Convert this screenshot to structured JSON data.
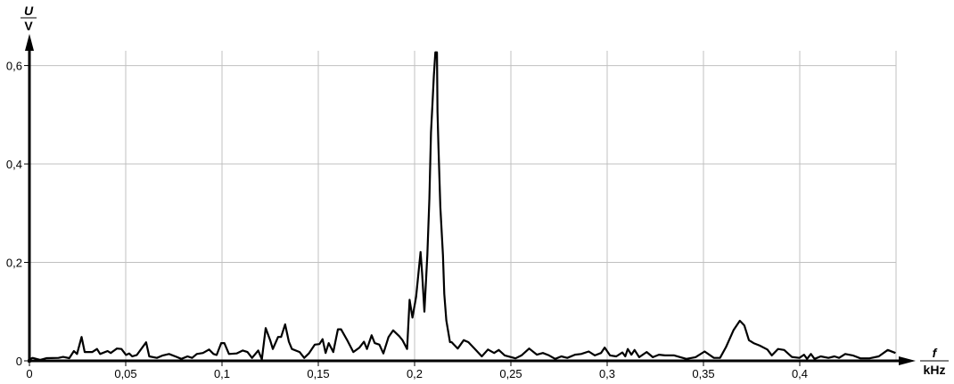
{
  "chart_data": {
    "type": "line",
    "title": "",
    "ylabel": {
      "symbol": "U",
      "unit": "V"
    },
    "xlabel": {
      "symbol": "f",
      "unit": "kHz"
    },
    "xlim": [
      0,
      0.45
    ],
    "ylim": [
      0,
      0.63
    ],
    "grid": true,
    "x_ticks": [
      0,
      0.05,
      0.1,
      0.15,
      0.2,
      0.25,
      0.3,
      0.35,
      0.4
    ],
    "x_tick_labels": [
      "0",
      "0,05",
      "0,1",
      "0,15",
      "0,2",
      "0,25",
      "0,3",
      "0,35",
      "0,4"
    ],
    "y_ticks": [
      0,
      0.2,
      0.4,
      0.6
    ],
    "y_tick_labels": [
      "0",
      "0,2",
      "0,4",
      "0,6"
    ],
    "colors": {
      "line": "#000000",
      "grid": "#c0c0c0",
      "axis": "#000000"
    },
    "series": [
      {
        "points": [
          [
            0,
            0.003
          ],
          [
            0.0016,
            0.006
          ],
          [
            0.0056,
            0.002
          ],
          [
            0.0088,
            0.0055
          ],
          [
            0.0151,
            0.006
          ],
          [
            0.0175,
            0.008
          ],
          [
            0.0207,
            0.0055
          ],
          [
            0.0231,
            0.02
          ],
          [
            0.0247,
            0.014
          ],
          [
            0.0271,
            0.0485
          ],
          [
            0.0287,
            0.018
          ],
          [
            0.0327,
            0.018
          ],
          [
            0.0351,
            0.024
          ],
          [
            0.0367,
            0.014
          ],
          [
            0.0406,
            0.02
          ],
          [
            0.0422,
            0.016
          ],
          [
            0.0454,
            0.025
          ],
          [
            0.0478,
            0.024
          ],
          [
            0.0502,
            0.012
          ],
          [
            0.0518,
            0.015
          ],
          [
            0.0534,
            0.009
          ],
          [
            0.0558,
            0.012
          ],
          [
            0.0606,
            0.0376
          ],
          [
            0.0622,
            0.009
          ],
          [
            0.0662,
            0.006
          ],
          [
            0.0693,
            0.011
          ],
          [
            0.0725,
            0.014
          ],
          [
            0.0765,
            0.008
          ],
          [
            0.0789,
            0.004
          ],
          [
            0.0821,
            0.009
          ],
          [
            0.0845,
            0.006
          ],
          [
            0.0869,
            0.014
          ],
          [
            0.0901,
            0.016
          ],
          [
            0.0933,
            0.023
          ],
          [
            0.0956,
            0.014
          ],
          [
            0.0972,
            0.012
          ],
          [
            0.0996,
            0.036
          ],
          [
            0.1012,
            0.036
          ],
          [
            0.1036,
            0.014
          ],
          [
            0.1076,
            0.015
          ],
          [
            0.1108,
            0.021
          ],
          [
            0.1132,
            0.018
          ],
          [
            0.1156,
            0.006
          ],
          [
            0.1188,
            0.021
          ],
          [
            0.1207,
            0.003
          ],
          [
            0.1227,
            0.0667
          ],
          [
            0.1251,
            0.041
          ],
          [
            0.1264,
            0.024
          ],
          [
            0.1291,
            0.0485
          ],
          [
            0.1307,
            0.0485
          ],
          [
            0.1328,
            0.074
          ],
          [
            0.1347,
            0.039
          ],
          [
            0.1363,
            0.024
          ],
          [
            0.1403,
            0.018
          ],
          [
            0.1427,
            0.006
          ],
          [
            0.1451,
            0.015
          ],
          [
            0.1482,
            0.033
          ],
          [
            0.1506,
            0.034
          ],
          [
            0.1522,
            0.044
          ],
          [
            0.1538,
            0.016
          ],
          [
            0.1554,
            0.036
          ],
          [
            0.1578,
            0.018
          ],
          [
            0.1602,
            0.064
          ],
          [
            0.1618,
            0.064
          ],
          [
            0.165,
            0.042
          ],
          [
            0.1682,
            0.018
          ],
          [
            0.1714,
            0.027
          ],
          [
            0.1737,
            0.039
          ],
          [
            0.1753,
            0.024
          ],
          [
            0.1777,
            0.052
          ],
          [
            0.1793,
            0.036
          ],
          [
            0.1817,
            0.033
          ],
          [
            0.1838,
            0.015
          ],
          [
            0.1865,
            0.0485
          ],
          [
            0.1889,
            0.062
          ],
          [
            0.1921,
            0.05
          ],
          [
            0.1937,
            0.042
          ],
          [
            0.1961,
            0.024
          ],
          [
            0.1974,
            0.124
          ],
          [
            0.1989,
            0.088
          ],
          [
            0.2008,
            0.13
          ],
          [
            0.2031,
            0.221
          ],
          [
            0.2039,
            0.179
          ],
          [
            0.2051,
            0.1
          ],
          [
            0.2066,
            0.215
          ],
          [
            0.2077,
            0.33
          ],
          [
            0.2085,
            0.464
          ],
          [
            0.2093,
            0.524
          ],
          [
            0.21,
            0.579
          ],
          [
            0.2108,
            0.627
          ],
          [
            0.2116,
            0.627
          ],
          [
            0.2119,
            0.506
          ],
          [
            0.2124,
            0.433
          ],
          [
            0.2134,
            0.312
          ],
          [
            0.2147,
            0.215
          ],
          [
            0.2154,
            0.136
          ],
          [
            0.2165,
            0.082
          ],
          [
            0.2184,
            0.038
          ],
          [
            0.2192,
            0.038
          ],
          [
            0.2224,
            0.025
          ],
          [
            0.2255,
            0.042
          ],
          [
            0.2279,
            0.038
          ],
          [
            0.2311,
            0.025
          ],
          [
            0.2349,
            0.009
          ],
          [
            0.2381,
            0.023
          ],
          [
            0.2413,
            0.016
          ],
          [
            0.2437,
            0.022
          ],
          [
            0.2468,
            0.011
          ],
          [
            0.2524,
            0.005
          ],
          [
            0.2555,
            0.011
          ],
          [
            0.2595,
            0.025
          ],
          [
            0.2635,
            0.0125
          ],
          [
            0.2666,
            0.016
          ],
          [
            0.2698,
            0.011
          ],
          [
            0.273,
            0.004
          ],
          [
            0.2762,
            0.009
          ],
          [
            0.2793,
            0.006
          ],
          [
            0.2833,
            0.0125
          ],
          [
            0.2865,
            0.014
          ],
          [
            0.2904,
            0.019
          ],
          [
            0.2936,
            0.011
          ],
          [
            0.2968,
            0.016
          ],
          [
            0.2987,
            0.027
          ],
          [
            0.3015,
            0.011
          ],
          [
            0.3047,
            0.009
          ],
          [
            0.3079,
            0.017
          ],
          [
            0.3094,
            0.009
          ],
          [
            0.3107,
            0.024
          ],
          [
            0.3126,
            0.0125
          ],
          [
            0.3142,
            0.022
          ],
          [
            0.3166,
            0.0075
          ],
          [
            0.3205,
            0.018
          ],
          [
            0.3237,
            0.0075
          ],
          [
            0.3269,
            0.0125
          ],
          [
            0.33,
            0.011
          ],
          [
            0.3348,
            0.011
          ],
          [
            0.338,
            0.0075
          ],
          [
            0.3411,
            0.004
          ],
          [
            0.3459,
            0.0075
          ],
          [
            0.3506,
            0.019
          ],
          [
            0.3554,
            0.006
          ],
          [
            0.3586,
            0.006
          ],
          [
            0.3617,
            0.028
          ],
          [
            0.3657,
            0.063
          ],
          [
            0.3689,
            0.0815
          ],
          [
            0.3712,
            0.072
          ],
          [
            0.3736,
            0.042
          ],
          [
            0.376,
            0.036
          ],
          [
            0.3792,
            0.031
          ],
          [
            0.3832,
            0.023
          ],
          [
            0.3855,
            0.011
          ],
          [
            0.3887,
            0.024
          ],
          [
            0.3919,
            0.022
          ],
          [
            0.3959,
            0.008
          ],
          [
            0.3998,
            0.006
          ],
          [
            0.4022,
            0.0125
          ],
          [
            0.4038,
            0.004
          ],
          [
            0.4058,
            0.014
          ],
          [
            0.4077,
            0.004
          ],
          [
            0.4109,
            0.009
          ],
          [
            0.4149,
            0.006
          ],
          [
            0.418,
            0.009
          ],
          [
            0.4204,
            0.006
          ],
          [
            0.4236,
            0.014
          ],
          [
            0.4275,
            0.011
          ],
          [
            0.4315,
            0.005
          ],
          [
            0.4362,
            0.005
          ],
          [
            0.441,
            0.009
          ],
          [
            0.4457,
            0.022
          ],
          [
            0.4497,
            0.016
          ]
        ]
      }
    ]
  }
}
